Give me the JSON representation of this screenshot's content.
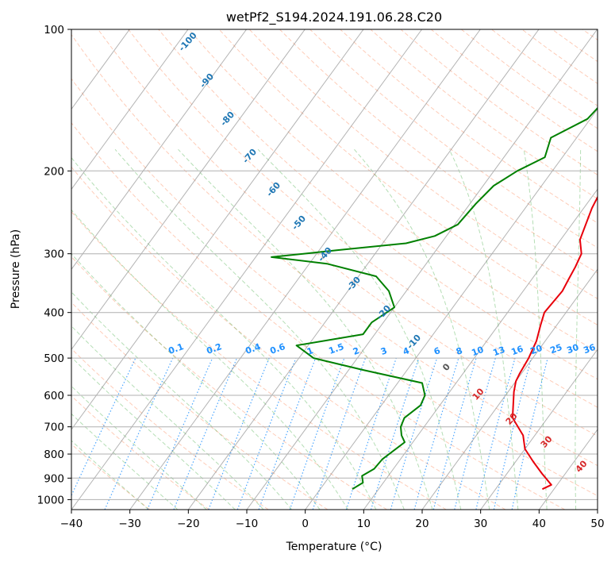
{
  "chart_data": {
    "type": "line",
    "title": "wetPf2_S194.2024.191.06.28.C20",
    "xlabel": "Temperature (°C)",
    "ylabel": "Pressure (hPa)",
    "xlim": [
      -40,
      50
    ],
    "ylim": [
      1050,
      100
    ],
    "y_scale": "log",
    "x_ticks": [
      -40,
      -30,
      -20,
      -10,
      0,
      10,
      20,
      30,
      40,
      50
    ],
    "y_ticks": [
      100,
      200,
      300,
      400,
      500,
      600,
      700,
      800,
      900,
      1000
    ],
    "grid": true,
    "series": [
      {
        "color": "#e8000b",
        "points": [
          [
            38,
            950
          ],
          [
            39,
            930
          ],
          [
            36,
            880
          ],
          [
            33,
            830
          ],
          [
            30,
            780
          ],
          [
            28,
            730
          ],
          [
            24,
            670
          ],
          [
            21,
            590
          ],
          [
            20,
            560
          ],
          [
            19.7,
            540
          ],
          [
            19.3,
            500
          ],
          [
            18.5,
            460
          ],
          [
            17.2,
            425
          ],
          [
            16.3,
            400
          ],
          [
            16.7,
            360
          ],
          [
            16.3,
            340
          ],
          [
            15.9,
            320
          ],
          [
            15.3,
            300
          ],
          [
            13.3,
            280
          ],
          [
            11.4,
            240
          ],
          [
            10.4,
            210
          ],
          [
            8.3,
            190
          ],
          [
            6.6,
            165
          ],
          [
            5.0,
            145
          ],
          [
            4.4,
            130
          ],
          [
            5.0,
            118
          ],
          [
            4.4,
            108
          ],
          [
            4.0,
            100
          ]
        ]
      },
      {
        "color": "#008000",
        "points": [
          [
            5.5,
            950
          ],
          [
            6.5,
            920
          ],
          [
            5.5,
            890
          ],
          [
            6.7,
            860
          ],
          [
            6.9,
            820
          ],
          [
            8.6,
            755
          ],
          [
            7.2,
            730
          ],
          [
            6,
            700
          ],
          [
            5.5,
            670
          ],
          [
            6.7,
            630
          ],
          [
            6.2,
            600
          ],
          [
            4.2,
            565
          ],
          [
            -7.5,
            530
          ],
          [
            -17.5,
            500
          ],
          [
            -22,
            470
          ],
          [
            -12,
            445
          ],
          [
            -12,
            420
          ],
          [
            -10,
            390
          ],
          [
            -13,
            360
          ],
          [
            -17,
            335
          ],
          [
            -27,
            315
          ],
          [
            -37.3,
            305
          ],
          [
            -27,
            295
          ],
          [
            -16,
            285
          ],
          [
            -12,
            275
          ],
          [
            -9.5,
            260
          ],
          [
            -9,
            235
          ],
          [
            -8.2,
            215
          ],
          [
            -6,
            200
          ],
          [
            -3,
            187
          ],
          [
            -4.4,
            170
          ],
          [
            -0.5,
            155
          ],
          [
            0.5,
            135
          ],
          [
            -1.0,
            117
          ],
          [
            0.2,
            108
          ],
          [
            2.0,
            100
          ]
        ]
      }
    ],
    "isotherm_labels": [
      "-100",
      "-90",
      "-80",
      "-70",
      "-60",
      "-50",
      "-40",
      "-30",
      "-20",
      "-10",
      "0"
    ],
    "mixing_ratio_labels": [
      "0.1",
      "0.2",
      "0.4",
      "0.6",
      "1",
      "1.5",
      "2",
      "3",
      "4",
      "6",
      "8",
      "10",
      "13",
      "16",
      "20",
      "25",
      "30",
      "36"
    ],
    "moist_adiabat_labels": [
      "10",
      "20",
      "30",
      "40"
    ]
  }
}
